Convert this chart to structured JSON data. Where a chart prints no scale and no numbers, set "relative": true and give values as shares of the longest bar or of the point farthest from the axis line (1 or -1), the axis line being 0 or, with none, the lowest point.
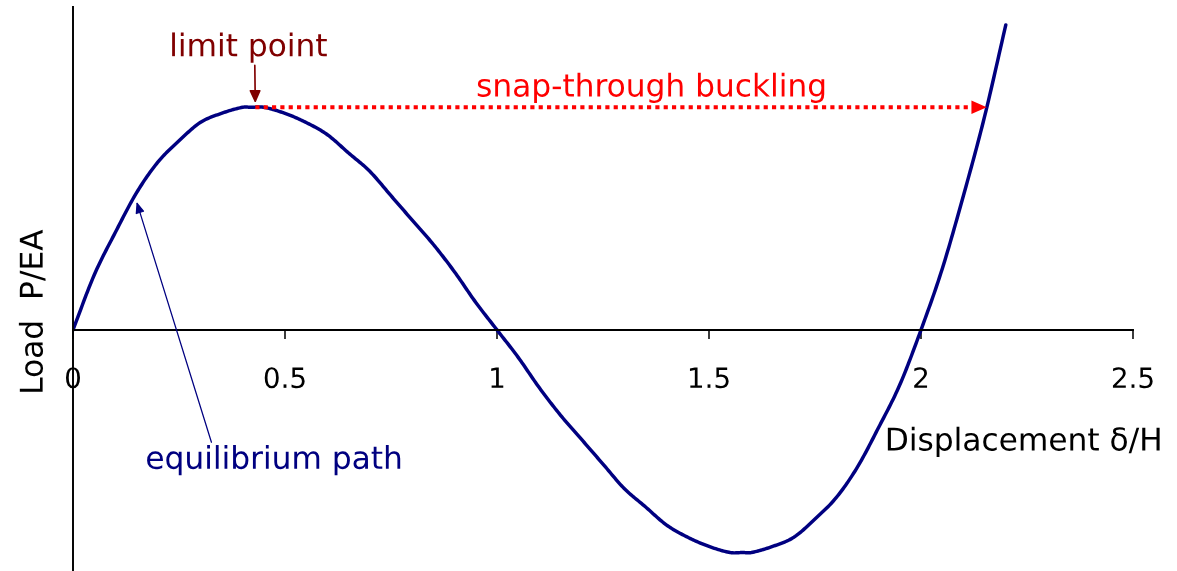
{
  "chart_data": {
    "type": "line",
    "xlabel": "Displacement δ/H",
    "ylabel": "Load  P/EA",
    "relative": true,
    "x": [
      0,
      0.05,
      0.1,
      0.15,
      0.2,
      0.25,
      0.3,
      0.35,
      0.4,
      0.42,
      0.45,
      0.5,
      0.55,
      0.6,
      0.65,
      0.7,
      0.75,
      0.8,
      0.85,
      0.9,
      0.95,
      1,
      1.05,
      1.1,
      1.15,
      1.2,
      1.25,
      1.3,
      1.35,
      1.4,
      1.45,
      1.5,
      1.55,
      1.58,
      1.6,
      1.65,
      1.7,
      1.75,
      1.8,
      1.85,
      1.9,
      1.95,
      2,
      2.05,
      2.1,
      2.15,
      2.2
    ],
    "series": [
      {
        "color": "#000080",
        "values": [
          0,
          0.18,
          0.32,
          0.45,
          0.55,
          0.62,
          0.68,
          0.71,
          0.73,
          0.73,
          0.73,
          0.71,
          0.68,
          0.64,
          0.58,
          0.52,
          0.44,
          0.36,
          0.28,
          0.19,
          0.09,
          0,
          -0.09,
          -0.19,
          -0.28,
          -0.36,
          -0.44,
          -0.52,
          -0.58,
          -0.64,
          -0.68,
          -0.71,
          -0.73,
          -0.73,
          -0.73,
          -0.71,
          -0.68,
          -0.62,
          -0.55,
          -0.45,
          -0.32,
          -0.18,
          0,
          0.2,
          0.44,
          0.7,
          1
        ]
      }
    ],
    "xlim": [
      0,
      2.5
    ],
    "xticks": [
      0,
      0.5,
      1,
      1.5,
      2,
      2.5
    ],
    "annotations": [
      {
        "text": "limit point",
        "x": 0.43,
        "y": 0.73
      },
      "snap-through buckling",
      {
        "text": "equilibrium path",
        "x": 0.15,
        "y": 0.42
      }
    ]
  }
}
